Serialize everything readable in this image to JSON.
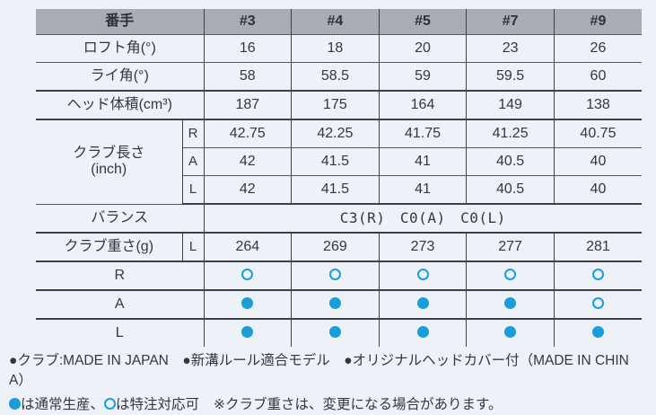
{
  "colors": {
    "accent_cyan": "#1a9edb",
    "header_gray": "#a9acb3",
    "page_background": "#edf1f8",
    "text": "#33373e"
  },
  "table": {
    "header": {
      "label": "番手",
      "columns": [
        "#3",
        "#4",
        "#5",
        "#7",
        "#9"
      ]
    },
    "spec_rows": [
      {
        "label": "ロフト角(°)",
        "values": [
          "16",
          "18",
          "20",
          "23",
          "26"
        ]
      },
      {
        "label": "ライ角(°)",
        "values": [
          "58",
          "58.5",
          "59",
          "59.5",
          "60"
        ]
      },
      {
        "label": "ヘッド体積(cm³)",
        "values": [
          "187",
          "175",
          "164",
          "149",
          "138"
        ]
      }
    ],
    "length": {
      "label_line1": "クラブ長さ",
      "label_line2": "(inch)",
      "rows": [
        {
          "flex": "R",
          "values": [
            "42.75",
            "42.25",
            "41.75",
            "41.25",
            "40.75"
          ]
        },
        {
          "flex": "A",
          "values": [
            "42",
            "41.5",
            "41",
            "40.5",
            "40"
          ]
        },
        {
          "flex": "L",
          "values": [
            "42",
            "41.5",
            "41",
            "40.5",
            "40"
          ]
        }
      ]
    },
    "balance": {
      "label": "バランス",
      "value": "C3(R)　C0(A)　C0(L)"
    },
    "weight": {
      "label": "クラブ重さ(g)",
      "flex": "L",
      "values": [
        "264",
        "269",
        "273",
        "277",
        "281"
      ]
    },
    "availability": [
      {
        "flex": "R",
        "marks": [
          "open",
          "open",
          "open",
          "open",
          "open"
        ]
      },
      {
        "flex": "A",
        "marks": [
          "filled",
          "filled",
          "filled",
          "filled",
          "open"
        ]
      },
      {
        "flex": "L",
        "marks": [
          "filled",
          "filled",
          "filled",
          "filled",
          "filled"
        ]
      }
    ]
  },
  "footer": {
    "features_line": "●クラブ:MADE IN JAPAN　●新溝ルール適合モデル　●オリジナルヘッドカバー付（MADE IN CHINA）",
    "legend": {
      "filled_label": "は通常生産、",
      "open_label": "は特注対応可",
      "note": "※クラブ重さは、変更になる場合があります。"
    }
  }
}
